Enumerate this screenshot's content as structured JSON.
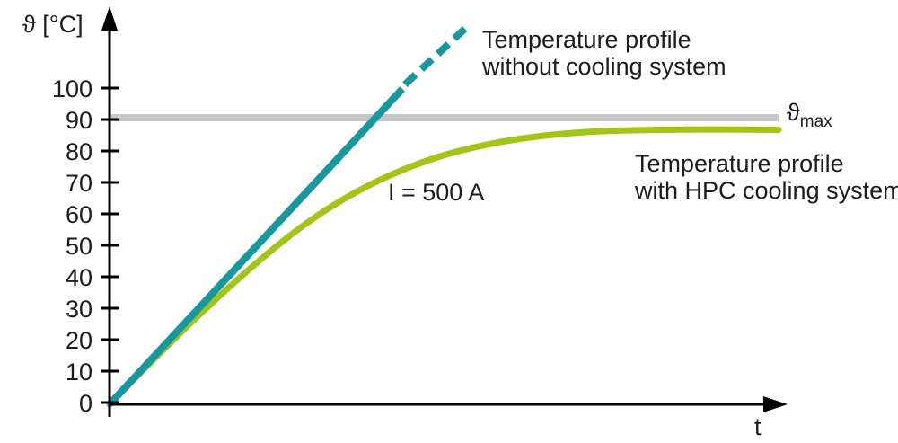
{
  "chart_data": {
    "type": "line",
    "title": "",
    "xlabel": "t",
    "ylabel": "ϑ [°C]",
    "yticks": [
      0,
      10,
      20,
      30,
      40,
      50,
      60,
      70,
      80,
      90,
      100
    ],
    "ylim": [
      0,
      125
    ],
    "xlim_note": "x axis unlabeled (time t, no tick values shown)",
    "grid": false,
    "legend_position": "inline annotations next to curves",
    "series": [
      {
        "name": "Temperature profile without cooling system",
        "color": "#17989e",
        "style": "solid, dashed above ~100 °C",
        "x": [
          0,
          0.44,
          0.54
        ],
        "values": [
          0,
          100,
          121
        ],
        "dashed_from_x": 0.44
      },
      {
        "name": "Temperature profile with HPC cooling system",
        "color": "#a2c617",
        "style": "solid",
        "x": [
          0,
          0.1,
          0.2,
          0.3,
          0.4,
          0.5,
          0.6,
          0.7,
          0.8,
          0.9,
          1.0
        ],
        "values": [
          0,
          20,
          42,
          59,
          71,
          79,
          84,
          86,
          87,
          87,
          87
        ]
      }
    ],
    "reference_line": {
      "label": "ϑmax",
      "value": 90,
      "color": "#c7c7c7"
    },
    "colors": {
      "teal": "#17989e",
      "green": "#a2c617",
      "gray": "#c7c7c7",
      "axis": "#000000",
      "text": "#1d1d1b"
    }
  },
  "labels": {
    "y_axis_title": "ϑ [°C]",
    "x_axis_title": "t",
    "without_cooling_line1": "Temperature profile",
    "without_cooling_line2": "without cooling system",
    "with_hpc_line1": "Temperature profile",
    "with_hpc_line2": "with HPC cooling system",
    "current_annotation": "I = 500 A",
    "theta_max_symbol": "ϑ",
    "theta_max_sub": "max"
  }
}
